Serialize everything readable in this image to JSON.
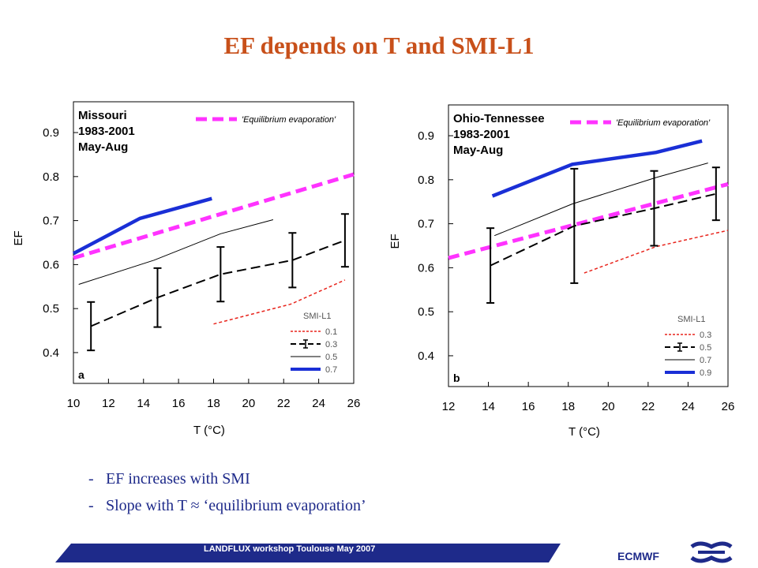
{
  "slide": {
    "title": "EF depends on T and SMI-L1",
    "bullets": [
      "EF increases with SMI",
      "Slope with T ≈ ‘equilibrium evaporation’"
    ],
    "footer_text": "LANDFLUX workshop Toulouse May 2007",
    "org": "ECMWF"
  },
  "colors": {
    "title": "#c8501a",
    "text": "#1e2a8a",
    "eq": "#ff33ff",
    "red": "#e8241c",
    "blue": "#1a2fd6",
    "footer": "#1e2a8a"
  },
  "chart_data": [
    {
      "type": "line",
      "panel": "a",
      "region_lines": [
        "Missouri",
        "1983-2001",
        "May-Aug"
      ],
      "xlabel": "T (°C)",
      "ylabel": "EF",
      "xlim": [
        10,
        26
      ],
      "ylim": [
        0.33,
        0.97
      ],
      "xticks": [
        10,
        12,
        14,
        16,
        18,
        20,
        22,
        24,
        26
      ],
      "yticks": [
        0.4,
        0.5,
        0.6,
        0.7,
        0.8,
        0.9
      ],
      "legend_title": "SMI-L1",
      "eq_label": "'Equilibrium evaporation'",
      "series": [
        {
          "name": "Equilibrium evaporation",
          "style": "eq",
          "x": [
            10.0,
            26.0
          ],
          "y": [
            0.615,
            0.805
          ]
        },
        {
          "name": "0.1",
          "style": "red",
          "x": [
            18.0,
            22.4,
            25.5
          ],
          "y": [
            0.465,
            0.51,
            0.565
          ]
        },
        {
          "name": "0.3",
          "style": "black-dash",
          "x": [
            11.0,
            14.8,
            18.4,
            22.5,
            25.5
          ],
          "y": [
            0.46,
            0.525,
            0.578,
            0.61,
            0.655
          ],
          "err": [
            0.055,
            0.067,
            0.062,
            0.062,
            0.06
          ]
        },
        {
          "name": "0.5",
          "style": "thin",
          "x": [
            10.3,
            14.6,
            18.4,
            21.4
          ],
          "y": [
            0.555,
            0.61,
            0.67,
            0.702
          ]
        },
        {
          "name": "0.7",
          "style": "blue",
          "x": [
            10.0,
            13.8,
            17.9
          ],
          "y": [
            0.625,
            0.705,
            0.75
          ]
        }
      ]
    },
    {
      "type": "line",
      "panel": "b",
      "region_lines": [
        "Ohio-Tennessee",
        "1983-2001",
        "May-Aug"
      ],
      "xlabel": "T (°C)",
      "ylabel": "EF",
      "xlim": [
        12,
        26
      ],
      "ylim": [
        0.33,
        0.97
      ],
      "xticks": [
        12,
        14,
        16,
        18,
        20,
        22,
        24,
        26
      ],
      "yticks": [
        0.4,
        0.5,
        0.6,
        0.7,
        0.8,
        0.9
      ],
      "legend_title": "SMI-L1",
      "eq_label": "'Equilibrium evaporation'",
      "series": [
        {
          "name": "Equilibrium evaporation",
          "style": "eq",
          "x": [
            12.0,
            26.0
          ],
          "y": [
            0.622,
            0.79
          ]
        },
        {
          "name": "0.3",
          "style": "red",
          "x": [
            18.8,
            22.4,
            26.0
          ],
          "y": [
            0.588,
            0.648,
            0.685
          ]
        },
        {
          "name": "0.5",
          "style": "black-dash",
          "x": [
            14.1,
            18.3,
            22.3,
            25.4
          ],
          "y": [
            0.605,
            0.695,
            0.735,
            0.768
          ],
          "err": [
            0.085,
            0.13,
            0.085,
            0.06
          ]
        },
        {
          "name": "0.7",
          "style": "thin",
          "x": [
            14.3,
            18.2,
            22.4,
            25.0
          ],
          "y": [
            0.673,
            0.745,
            0.805,
            0.838
          ]
        },
        {
          "name": "0.9",
          "style": "blue",
          "x": [
            14.2,
            18.2,
            22.4,
            24.7
          ],
          "y": [
            0.763,
            0.835,
            0.862,
            0.888
          ]
        }
      ]
    }
  ]
}
